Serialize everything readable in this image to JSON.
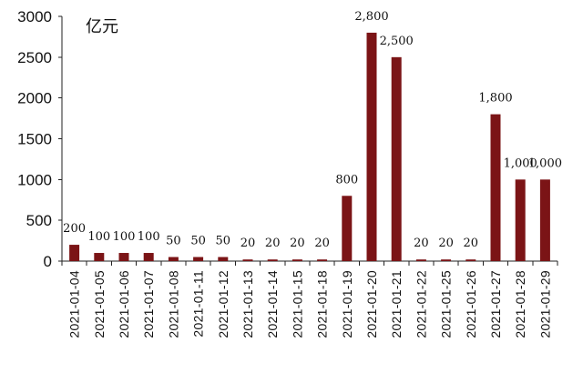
{
  "chart_data": {
    "type": "bar",
    "unit_label": "亿元",
    "categories": [
      "2021-01-04",
      "2021-01-05",
      "2021-01-06",
      "2021-01-07",
      "2021-01-08",
      "2021-01-11",
      "2021-01-12",
      "2021-01-13",
      "2021-01-14",
      "2021-01-15",
      "2021-01-18",
      "2021-01-19",
      "2021-01-20",
      "2021-01-21",
      "2021-01-22",
      "2021-01-25",
      "2021-01-26",
      "2021-01-27",
      "2021-01-28",
      "2021-01-29"
    ],
    "values": [
      200,
      100,
      100,
      100,
      50,
      50,
      50,
      20,
      20,
      20,
      20,
      800,
      2800,
      2500,
      20,
      20,
      20,
      1800,
      1000,
      1000
    ],
    "data_labels": [
      "200",
      "100",
      "100",
      "100",
      "50",
      "50",
      "50",
      "20",
      "20",
      "20",
      "20",
      "800",
      "2,800",
      "2,500",
      "20",
      "20",
      "20",
      "1,800",
      "1,000",
      "1,000"
    ],
    "ylim": [
      0,
      3000
    ],
    "yticks": [
      0,
      500,
      1000,
      1500,
      2000,
      2500,
      3000
    ],
    "ytick_labels": [
      "0",
      "500",
      "1000",
      "1500",
      "2000",
      "2500",
      "3000"
    ],
    "grid": false,
    "legend": "none",
    "bar_color": "#7b1416"
  }
}
